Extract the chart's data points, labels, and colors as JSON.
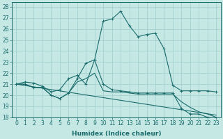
{
  "xlabel": "Humidex (Indice chaleur)",
  "bg_color": "#c5e8e5",
  "line_color": "#1a6b6b",
  "grid_color": "#a0cece",
  "xlim": [
    -0.5,
    23.5
  ],
  "ylim": [
    18,
    28.4
  ],
  "xticks": [
    0,
    1,
    2,
    3,
    4,
    5,
    6,
    7,
    8,
    9,
    10,
    11,
    12,
    13,
    14,
    15,
    16,
    17,
    18,
    19,
    20,
    21,
    22,
    23
  ],
  "yticks": [
    18,
    19,
    20,
    21,
    22,
    23,
    24,
    25,
    26,
    27,
    28
  ],
  "tick_fontsize": 5.5,
  "xlabel_fontsize": 6.5,
  "lines": [
    {
      "x": [
        0,
        1,
        2,
        3,
        4,
        5,
        6,
        7,
        8,
        9,
        10,
        11,
        12,
        13,
        14,
        15,
        16,
        17,
        18,
        19,
        20,
        21,
        22,
        23
      ],
      "y": [
        21.0,
        21.2,
        21.1,
        20.8,
        20.3,
        20.5,
        21.5,
        21.8,
        21.0,
        23.2,
        26.7,
        26.9,
        27.6,
        26.3,
        25.3,
        25.5,
        25.6,
        24.2,
        20.9,
        20.4,
        20.4,
        20.4,
        20.4,
        20.3
      ],
      "marker": true
    },
    {
      "x": [
        0,
        1,
        2,
        3,
        4,
        5,
        6,
        7,
        8,
        9,
        10,
        11,
        12,
        13,
        14,
        15,
        16,
        17,
        18,
        19,
        20,
        21,
        22,
        23
      ],
      "y": [
        21.0,
        21.0,
        20.7,
        20.7,
        20.0,
        19.7,
        20.2,
        21.5,
        22.9,
        23.2,
        21.0,
        20.5,
        20.4,
        20.3,
        20.2,
        20.2,
        20.2,
        20.2,
        20.2,
        18.8,
        18.3,
        18.3,
        18.0,
        17.9
      ],
      "marker": true
    },
    {
      "x": [
        0,
        23
      ],
      "y": [
        21.0,
        18.2
      ],
      "marker": false
    },
    {
      "x": [
        0,
        1,
        2,
        3,
        4,
        5,
        6,
        7,
        8,
        9,
        10,
        11,
        12,
        13,
        14,
        15,
        16,
        17,
        18,
        19,
        20,
        21,
        22,
        23
      ],
      "y": [
        21.0,
        21.0,
        20.7,
        20.7,
        20.0,
        19.7,
        20.2,
        21.2,
        21.5,
        22.0,
        20.4,
        20.3,
        20.3,
        20.2,
        20.1,
        20.1,
        20.1,
        20.1,
        20.1,
        19.4,
        18.9,
        18.5,
        18.3,
        18.0
      ],
      "marker": false
    }
  ]
}
